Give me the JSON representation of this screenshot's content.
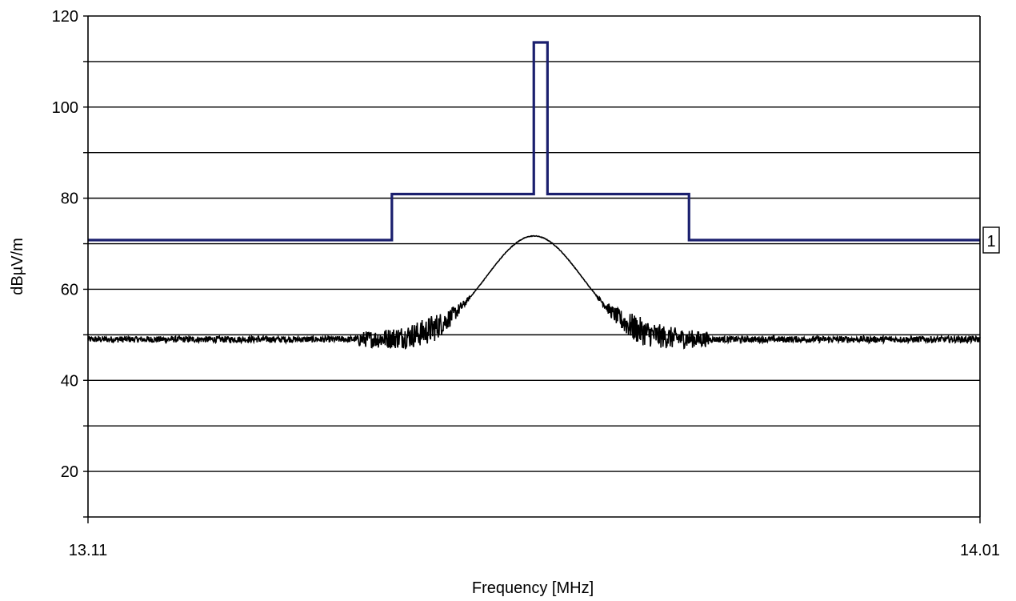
{
  "chart_data": {
    "type": "line",
    "title": "",
    "xlabel": "Frequency [MHz]",
    "ylabel": "dBµV/m",
    "xlim": [
      13.11,
      14.01
    ],
    "ylim": [
      10,
      120
    ],
    "x_tick_labels": [
      "13.11",
      "14.01"
    ],
    "y_tick_values": [
      20,
      40,
      60,
      80,
      100,
      120
    ],
    "y_tick_labels": [
      "20",
      "40",
      "60",
      "80",
      "100",
      "120"
    ],
    "grid": true,
    "colors": {
      "limit_line": "#1a1f6e",
      "measurement": "#000000",
      "grid": "#000000"
    },
    "series": [
      {
        "points": [
          [
            13.11,
            70.8
          ],
          [
            13.4166,
            70.8
          ],
          [
            13.4166,
            80.9
          ],
          [
            13.5598,
            80.9
          ],
          [
            13.5598,
            114.2
          ],
          [
            13.5736,
            114.2
          ],
          [
            13.5736,
            80.9
          ],
          [
            13.7164,
            80.9
          ],
          [
            13.7164,
            70.8
          ],
          [
            14.01,
            70.8
          ]
        ]
      },
      {
        "peak_frequency": 13.56,
        "peak_level": 71.7,
        "floor_level": 49,
        "half_width": 0.068,
        "noise_band": 6
      }
    ],
    "annotations": [
      {
        "text": "1",
        "x": 14.01,
        "y": 70.8
      }
    ]
  }
}
